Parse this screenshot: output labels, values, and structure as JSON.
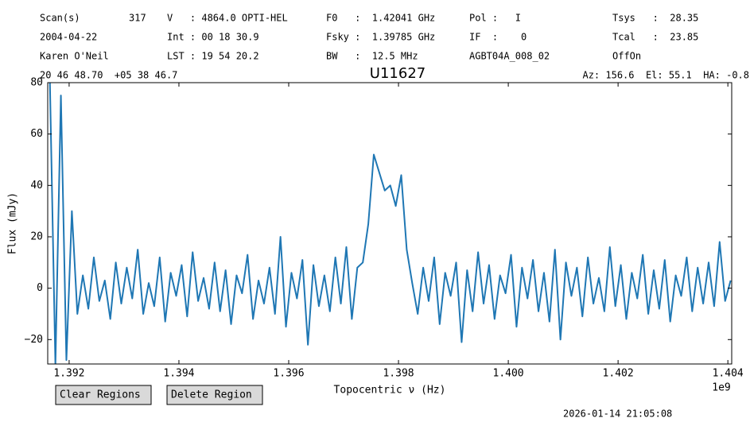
{
  "header": {
    "scan_label": "Scan(s)",
    "scan_value": "317",
    "velocity": "V   : 4864.0 OPTI-HEL",
    "f0": "F0   :  1.42041 GHz",
    "pol": "Pol :   I",
    "tsys": "Tsys   :  28.35",
    "date": "2004-04-22",
    "int": "Int : 00 18 30.9",
    "fsky": "Fsky :  1.39785 GHz",
    "if": "IF  :    0",
    "tcal": "Tcal   :  23.85",
    "observer": "Karen O'Neil",
    "lst": "LST : 19 54 20.2",
    "bw": "BW   :  12.5 MHz",
    "project": "AGBT04A_008_02",
    "procedure": "OffOn",
    "coords": "20 46 48.70  +05 38 46.7",
    "azel": "Az: 156.6  El: 55.1  HA: -0.8"
  },
  "chart_data": {
    "type": "line",
    "title": "U11627",
    "xlabel": "Topocentric ν (Hz)",
    "ylabel": "Flux (mJy)",
    "x_offset_label": "1e9",
    "xlim": [
      1391610000,
      1404070000
    ],
    "ylim": [
      -29.5,
      80
    ],
    "xticks": [
      {
        "value": 1392000000,
        "label": "1.392"
      },
      {
        "value": 1394000000,
        "label": "1.394"
      },
      {
        "value": 1396000000,
        "label": "1.396"
      },
      {
        "value": 1398000000,
        "label": "1.398"
      },
      {
        "value": 1400000000,
        "label": "1.400"
      },
      {
        "value": 1402000000,
        "label": "1.402"
      },
      {
        "value": 1404000000,
        "label": "1.404"
      }
    ],
    "yticks": [
      {
        "value": -20,
        "label": "−20"
      },
      0,
      20,
      40,
      60,
      80
    ],
    "x": [
      1391650000,
      1391750000,
      1391850000,
      1391950000,
      1392050000,
      1392150000,
      1392250000,
      1392350000,
      1392450000,
      1392550000,
      1392650000,
      1392750000,
      1392850000,
      1392950000,
      1393050000,
      1393150000,
      1393250000,
      1393350000,
      1393450000,
      1393550000,
      1393650000,
      1393750000,
      1393850000,
      1393950000,
      1394050000,
      1394150000,
      1394250000,
      1394350000,
      1394450000,
      1394550000,
      1394650000,
      1394750000,
      1394850000,
      1394950000,
      1395050000,
      1395150000,
      1395250000,
      1395350000,
      1395450000,
      1395550000,
      1395650000,
      1395750000,
      1395850000,
      1395950000,
      1396050000,
      1396150000,
      1396250000,
      1396350000,
      1396450000,
      1396550000,
      1396650000,
      1396750000,
      1396850000,
      1396950000,
      1397050000,
      1397150000,
      1397250000,
      1397350000,
      1397450000,
      1397550000,
      1397650000,
      1397750000,
      1397850000,
      1397950000,
      1398050000,
      1398150000,
      1398250000,
      1398350000,
      1398450000,
      1398550000,
      1398650000,
      1398750000,
      1398850000,
      1398950000,
      1399050000,
      1399150000,
      1399250000,
      1399350000,
      1399450000,
      1399550000,
      1399650000,
      1399750000,
      1399850000,
      1399950000,
      1400050000,
      1400150000,
      1400250000,
      1400350000,
      1400450000,
      1400550000,
      1400650000,
      1400750000,
      1400850000,
      1400950000,
      1401050000,
      1401150000,
      1401250000,
      1401350000,
      1401450000,
      1401550000,
      1401650000,
      1401750000,
      1401850000,
      1401950000,
      1402050000,
      1402150000,
      1402250000,
      1402350000,
      1402450000,
      1402550000,
      1402650000,
      1402750000,
      1402850000,
      1402950000,
      1403050000,
      1403150000,
      1403250000,
      1403350000,
      1403450000,
      1403550000,
      1403650000,
      1403750000,
      1403850000,
      1403950000,
      1404050000
    ],
    "series": [
      {
        "color": "#1f77b4",
        "values": [
          80,
          -30,
          75,
          -28,
          30,
          -10,
          5,
          -8,
          12,
          -5,
          3,
          -12,
          10,
          -6,
          8,
          -4,
          15,
          -10,
          2,
          -7,
          12,
          -13,
          6,
          -3,
          9,
          -11,
          14,
          -5,
          4,
          -8,
          10,
          -9,
          7,
          -14,
          5,
          -2,
          13,
          -12,
          3,
          -6,
          8,
          -10,
          20,
          -15,
          6,
          -4,
          11,
          -22,
          9,
          -7,
          5,
          -9,
          12,
          -6,
          16,
          -12,
          8,
          10,
          25,
          52,
          45,
          38,
          40,
          32,
          44,
          15,
          2,
          -10,
          8,
          -5,
          12,
          -14,
          6,
          -3,
          10,
          -21,
          7,
          -9,
          14,
          -6,
          9,
          -12,
          5,
          -2,
          13,
          -15,
          8,
          -4,
          11,
          -9,
          6,
          -13,
          15,
          -20,
          10,
          -3,
          8,
          -11,
          12,
          -6,
          4,
          -9,
          16,
          -7,
          9,
          -12,
          6,
          -4,
          13,
          -10,
          7,
          -8,
          11,
          -13,
          5,
          -3,
          12,
          -9,
          8,
          -6,
          10,
          -7,
          18,
          -5,
          3
        ]
      }
    ]
  },
  "buttons": [
    "Clear Regions",
    "Delete Region"
  ],
  "timestamp": "2026-01-14 21:05:08"
}
